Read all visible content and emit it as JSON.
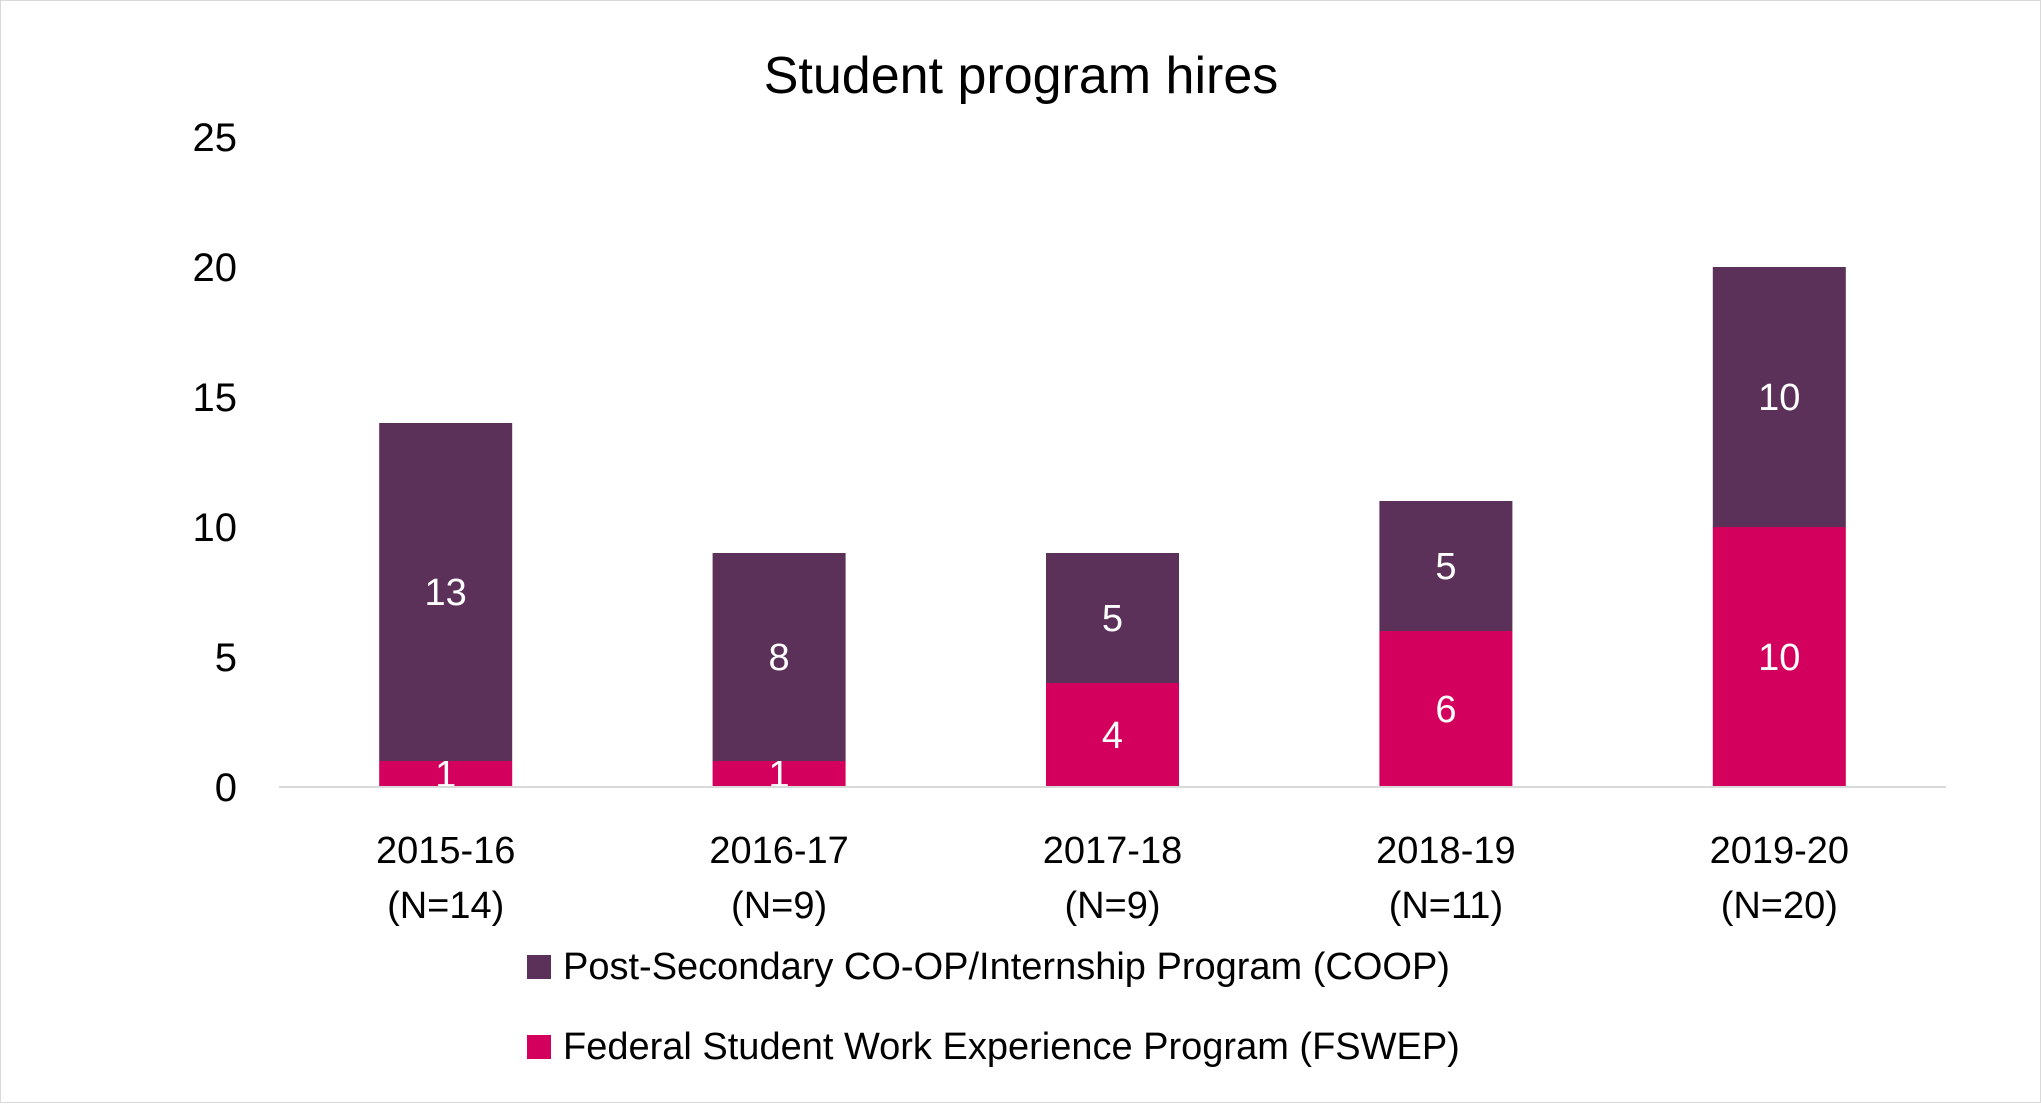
{
  "chart_data": {
    "type": "bar",
    "stacked": true,
    "title": "Student program hires",
    "xlabel": "",
    "ylabel": "",
    "ylim": [
      0,
      25
    ],
    "yticks": [
      0,
      5,
      10,
      15,
      20,
      25
    ],
    "categories": [
      [
        "2015-16",
        "(N=14)"
      ],
      [
        "2016-17",
        "(N=9)"
      ],
      [
        "2017-18",
        "(N=9)"
      ],
      [
        "2018-19",
        "(N=11)"
      ],
      [
        "2019-20",
        "(N=20)"
      ]
    ],
    "series": [
      {
        "name": "Federal Student Work Experience Program (FSWEP)",
        "color": "#d4005e",
        "values": [
          1,
          1,
          4,
          6,
          10
        ]
      },
      {
        "name": "Post-Secondary CO-OP/Internship Program (COOP)",
        "color": "#5b3059",
        "values": [
          13,
          8,
          5,
          5,
          10
        ]
      }
    ],
    "legend_order": [
      1,
      0
    ],
    "legend_position": "bottom",
    "grid": false
  }
}
